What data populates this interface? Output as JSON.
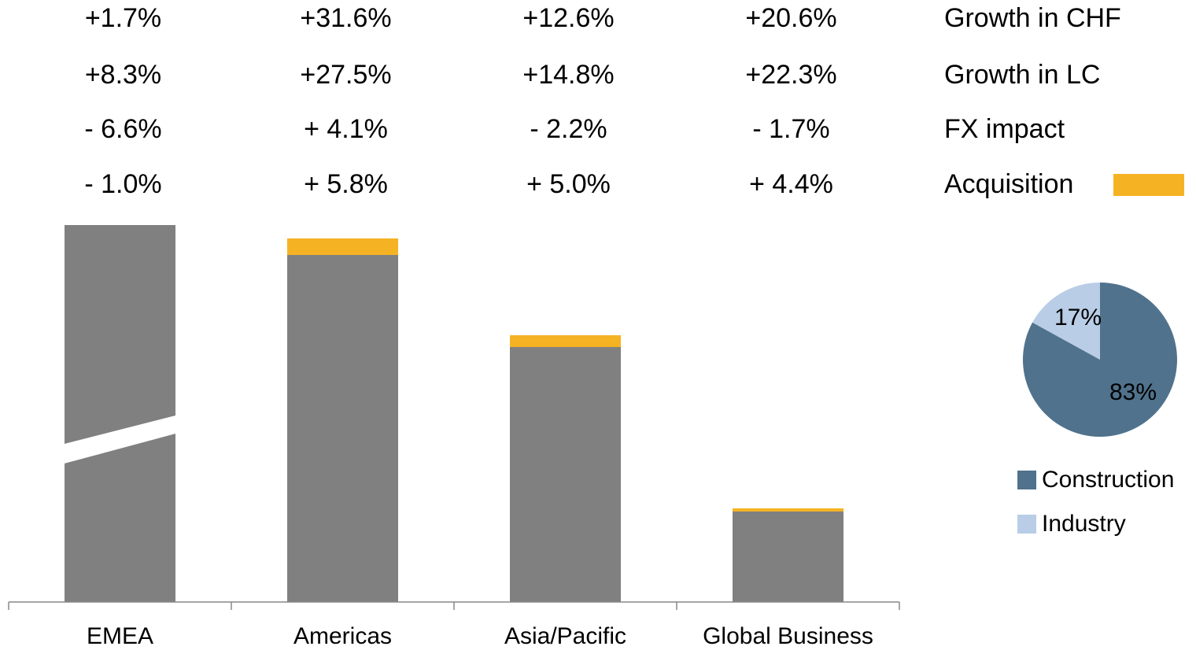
{
  "chart_data": [
    {
      "type": "bar",
      "categories": [
        "EMEA",
        "Americas",
        "Asia/Pacific",
        "Global Business"
      ],
      "series": [
        {
          "color": "#808080",
          "values": [
            479,
            441,
            324,
            115
          ]
        },
        {
          "name": "Acquisition",
          "color": "#f5b324",
          "values": [
            0,
            21,
            15,
            4
          ]
        }
      ],
      "ylim": [
        0,
        480
      ],
      "broken_axis": true,
      "rows": [
        {
          "label": "Growth in CHF",
          "cells": [
            "+1.7%",
            "+31.6%",
            "+12.6%",
            "+20.6%"
          ]
        },
        {
          "label": "Growth in LC",
          "cells": [
            "+8.3%",
            "+27.5%",
            "+14.8%",
            "+22.3%"
          ]
        },
        {
          "label": "FX impact",
          "cells": [
            "- 6.6%",
            "+ 4.1%",
            "- 2.2%",
            "- 1.7%"
          ]
        },
        {
          "cells": [
            "- 1.0%",
            "+ 5.8%",
            "+ 5.0%",
            "+ 4.4%"
          ]
        }
      ]
    },
    {
      "type": "pie",
      "categories": [
        "Construction",
        "Industry"
      ],
      "values": [
        83,
        17
      ],
      "value_labels": [
        "83%",
        "17%"
      ],
      "colors": [
        "#50728c",
        "#b9cde6"
      ],
      "legend": "bottom"
    }
  ]
}
